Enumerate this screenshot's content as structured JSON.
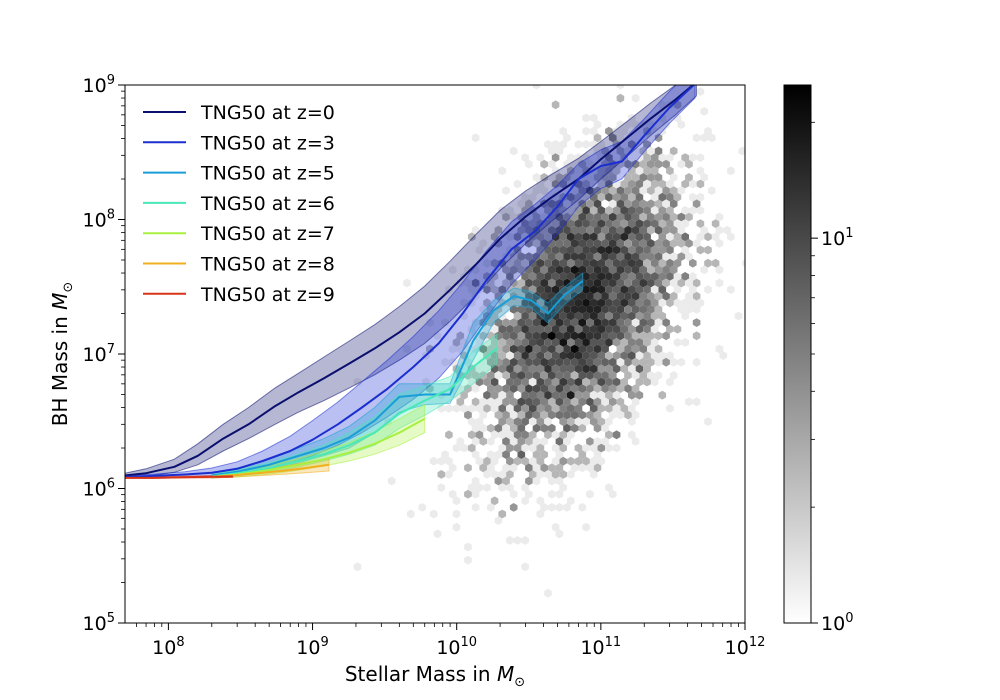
{
  "chart_data": {
    "type": "line",
    "title": "",
    "xlabel": "Stellar Mass in M_⊙",
    "xlabel_main": "Stellar Mass in ",
    "xlabel_symbol": "M",
    "xlabel_sub": "⊙",
    "ylabel": "BH Mass in M_⊙",
    "ylabel_main": "BH Mass in ",
    "ylabel_symbol": "M",
    "ylabel_sub": "⊙",
    "xscale": "log",
    "yscale": "log",
    "xlim": [
      50000000,
      1000000000000
    ],
    "ylim": [
      100000,
      1000000000
    ],
    "grid": false,
    "legend_position": "upper-left",
    "x_ticks": [
      {
        "value": 100000000,
        "base": "10",
        "exp": "8"
      },
      {
        "value": 1000000000,
        "base": "10",
        "exp": "9"
      },
      {
        "value": 10000000000,
        "base": "10",
        "exp": "10"
      },
      {
        "value": 100000000000,
        "base": "10",
        "exp": "11"
      },
      {
        "value": 1000000000000,
        "base": "10",
        "exp": "12"
      }
    ],
    "y_ticks": [
      {
        "value": 100000,
        "base": "10",
        "exp": "5"
      },
      {
        "value": 1000000,
        "base": "10",
        "exp": "6"
      },
      {
        "value": 10000000,
        "base": "10",
        "exp": "7"
      },
      {
        "value": 100000000,
        "base": "10",
        "exp": "8"
      },
      {
        "value": 1000000000,
        "base": "10",
        "exp": "9"
      }
    ],
    "series": [
      {
        "name": "TNG50 at z=0",
        "color": "#0a0f6e",
        "x": [
          50000000.0,
          70000000.0,
          110000000.0,
          160000000.0,
          240000000.0,
          360000000.0,
          550000000.0,
          800000000.0,
          1200000000.0,
          1800000000.0,
          2700000000.0,
          4000000000.0,
          6000000000.0,
          9000000000.0,
          13500000000.0,
          20000000000.0,
          30000000000.0,
          45000000000.0,
          70000000000.0,
          100000000000.0,
          150000000000.0,
          220000000000.0,
          330000000000.0,
          460000000000.0
        ],
        "y": [
          1250000.0,
          1300000.0,
          1450000.0,
          1750000.0,
          2350000.0,
          3000000.0,
          4100000.0,
          5200000.0,
          6600000.0,
          8500000.0,
          11000000.0,
          14500000.0,
          20000000.0,
          30000000.0,
          46000000.0,
          72000000.0,
          105000000.0,
          145000000.0,
          200000000.0,
          280000000.0,
          400000000.0,
          560000000.0,
          780000000.0,
          1050000000.0
        ],
        "lower": [
          1200000.0,
          1230000.0,
          1320000.0,
          1500000.0,
          1900000.0,
          2350000.0,
          3000000.0,
          3700000.0,
          4500000.0,
          5600000.0,
          7000000.0,
          9000000.0,
          12000000.0,
          17500000.0,
          27000000.0,
          43000000.0,
          66000000.0,
          96000000.0,
          140000000.0,
          200000000.0,
          290000000.0,
          420000000.0,
          600000000.0,
          830000000.0
        ],
        "upper": [
          1300000.0,
          1400000.0,
          1650000.0,
          2150000.0,
          3000000.0,
          4000000.0,
          5600000.0,
          7200000.0,
          9500000.0,
          12500000.0,
          16500000.0,
          22500000.0,
          32000000.0,
          49000000.0,
          77000000.0,
          117000000.0,
          163000000.0,
          215000000.0,
          285000000.0,
          380000000.0,
          530000000.0,
          730000000.0,
          1000000000.0,
          1300000000.0
        ]
      },
      {
        "name": "TNG50 at z=3",
        "color": "#1b2fd0",
        "x": [
          50000000.0,
          80000000.0,
          130000000.0,
          200000000.0,
          300000000.0,
          450000000.0,
          700000000.0,
          1000000000.0,
          1500000000.0,
          2200000000.0,
          3300000000.0,
          5000000000.0,
          7500000000.0,
          11000000000.0,
          16000000000.0,
          24000000000.0,
          35000000000.0,
          50000000000.0,
          70000000000.0,
          100000000000.0,
          140000000000.0,
          200000000000.0,
          300000000000.0,
          450000000000.0
        ],
        "y": [
          1220000.0,
          1240000.0,
          1270000.0,
          1310000.0,
          1400000.0,
          1600000.0,
          1900000.0,
          2300000.0,
          3000000.0,
          4000000.0,
          5500000.0,
          8000000.0,
          12000000.0,
          20000000.0,
          35000000.0,
          60000000.0,
          82000000.0,
          125000000.0,
          200000000.0,
          250000000.0,
          270000000.0,
          420000000.0,
          680000000.0,
          1020000000.0
        ],
        "lower": [
          1200000.0,
          1210000.0,
          1220000.0,
          1240000.0,
          1280000.0,
          1380000.0,
          1550000.0,
          1750000.0,
          2100000.0,
          2600000.0,
          3400000.0,
          4600000.0,
          6600000.0,
          10500000.0,
          18500000.0,
          33000000.0,
          50000000.0,
          78000000.0,
          125000000.0,
          170000000.0,
          200000000.0,
          320000000.0,
          520000000.0,
          800000000.0
        ],
        "upper": [
          1250000.0,
          1280000.0,
          1330000.0,
          1420000.0,
          1580000.0,
          1900000.0,
          2450000.0,
          3200000.0,
          4400000.0,
          6200000.0,
          9000000.0,
          13500000.0,
          21000000.0,
          34000000.0,
          58000000.0,
          96000000.0,
          130000000.0,
          180000000.0,
          260000000.0,
          330000000.0,
          380000000.0,
          560000000.0,
          900000000.0,
          1350000000.0
        ]
      },
      {
        "name": "TNG50 at z=5",
        "color": "#1a9ed8",
        "x": [
          200000000.0,
          300000000.0,
          500000000.0,
          800000000.0,
          1200000000.0,
          1800000000.0,
          2700000000.0,
          4000000000.0,
          6000000000.0,
          9000000000.0,
          13000000000.0,
          18000000000.0,
          25000000000.0,
          33000000000.0,
          43000000000.0,
          55000000000.0,
          75000000000.0
        ],
        "y": [
          1250000.0,
          1330000.0,
          1500000.0,
          1750000.0,
          2000000.0,
          2400000.0,
          3200000.0,
          4800000.0,
          5000000.0,
          5000000.0,
          12500000.0,
          21000000.0,
          27000000.0,
          25000000.0,
          20000000.0,
          27000000.0,
          35000000.0
        ],
        "lower": [
          1200000.0,
          1260000.0,
          1380000.0,
          1550000.0,
          1750000.0,
          2000000.0,
          2600000.0,
          3700000.0,
          4200000.0,
          4300000.0,
          9000000.0,
          17000000.0,
          23000000.0,
          22000000.0,
          17000000.0,
          23000000.0,
          30000000.0
        ],
        "upper": [
          1300000.0,
          1420000.0,
          1650000.0,
          2000000.0,
          2350000.0,
          2900000.0,
          4000000.0,
          6000000.0,
          6000000.0,
          6000000.0,
          17000000.0,
          25000000.0,
          31000000.0,
          29000000.0,
          24000000.0,
          31000000.0,
          40000000.0
        ]
      },
      {
        "name": "TNG50 at z=6",
        "color": "#48e8b8",
        "x": [
          200000000.0,
          300000000.0,
          500000000.0,
          800000000.0,
          1200000000.0,
          1800000000.0,
          2700000000.0,
          4000000000.0,
          6000000000.0,
          9000000000.0,
          13000000000.0,
          19000000000.0
        ],
        "y": [
          1230000.0,
          1300000.0,
          1420000.0,
          1600000.0,
          1800000.0,
          2100000.0,
          2600000.0,
          3600000.0,
          4500000.0,
          5500000.0,
          8000000.0,
          11000000.0
        ],
        "lower": [
          1200000.0,
          1240000.0,
          1320000.0,
          1450000.0,
          1600000.0,
          1800000.0,
          2100000.0,
          2800000.0,
          3500000.0,
          4500000.0,
          6000000.0,
          8500000.0
        ],
        "upper": [
          1270000.0,
          1380000.0,
          1550000.0,
          1800000.0,
          2100000.0,
          2600000.0,
          3400000.0,
          5000000.0,
          5800000.0,
          6800000.0,
          10500000.0,
          14000000.0
        ]
      },
      {
        "name": "TNG50 at z=7",
        "color": "#a8f040",
        "x": [
          200000000.0,
          300000000.0,
          500000000.0,
          800000000.0,
          1200000000.0,
          1800000000.0,
          2700000000.0,
          4000000000.0,
          6000000000.0
        ],
        "y": [
          1220000.0,
          1270000.0,
          1370000.0,
          1500000.0,
          1650000.0,
          1850000.0,
          2150000.0,
          2600000.0,
          3300000.0
        ],
        "lower": [
          1200000.0,
          1220000.0,
          1280000.0,
          1370000.0,
          1470000.0,
          1600000.0,
          1800000.0,
          2100000.0,
          2600000.0
        ],
        "upper": [
          1250000.0,
          1330000.0,
          1480000.0,
          1670000.0,
          1900000.0,
          2200000.0,
          2650000.0,
          3300000.0,
          4200000.0
        ]
      },
      {
        "name": "TNG50 at z=8",
        "color": "#f0b020",
        "x": [
          200000000.0,
          300000000.0,
          450000000.0,
          650000000.0,
          900000000.0,
          1300000000.0
        ],
        "y": [
          1220000.0,
          1260000.0,
          1310000.0,
          1360000.0,
          1420000.0,
          1500000.0
        ],
        "lower": [
          1200000.0,
          1220000.0,
          1250000.0,
          1280000.0,
          1310000.0,
          1350000.0
        ],
        "upper": [
          1250000.0,
          1310000.0,
          1390000.0,
          1470000.0,
          1570000.0,
          1680000.0
        ]
      },
      {
        "name": "TNG50 at z=9",
        "color": "#d83418",
        "x": [
          50000000.0,
          80000000.0,
          120000000.0,
          180000000.0,
          280000000.0
        ],
        "y": [
          1200000.0,
          1200000.0,
          1210000.0,
          1220000.0,
          1230000.0
        ],
        "lower": [
          1190000.0,
          1190000.0,
          1200000.0,
          1200000.0,
          1210000.0
        ],
        "upper": [
          1210000.0,
          1220000.0,
          1230000.0,
          1240000.0,
          1260000.0
        ]
      }
    ],
    "hexbin": {
      "type": "hexbin",
      "cmap": "gray-reversed",
      "scale": "log",
      "center_x_log": 10.85,
      "center_y_log": 7.35,
      "spread_x_log": 0.35,
      "spread_y_log": 0.55,
      "n_points": 5000,
      "outliers": [
        [
          38000000000.0,
          1000000000.0
        ],
        [
          1950000000.0,
          270000.0
        ],
        [
          7500000000.0,
          450000.0
        ],
        [
          10000000000.0,
          500000.0
        ],
        [
          5500000000.0,
          750000.0
        ],
        [
          38000000000.0,
          300000000.0
        ],
        [
          400000000000.0,
          65000000.0
        ],
        [
          500000000000.0,
          180000000.0
        ],
        [
          800000000000.0,
          30000000.0
        ],
        [
          650000000000.0,
          100000000.0
        ],
        [
          12000000000.0,
          1500000.0
        ],
        [
          2000000000.0,
          6500000.0
        ],
        [
          3500000000.0,
          1200000.0
        ],
        [
          25000000000.0,
          2000000.0
        ]
      ]
    },
    "colorbar": {
      "scale": "log",
      "range": [
        1,
        25
      ],
      "ticks": [
        {
          "value": 1,
          "base": "10",
          "exp": "0"
        },
        {
          "value": 10,
          "base": "10",
          "exp": "1"
        }
      ]
    }
  }
}
